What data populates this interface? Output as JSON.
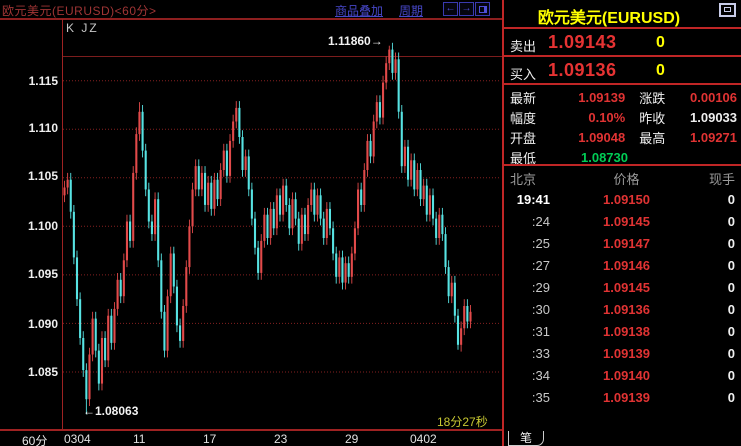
{
  "colors": {
    "red": "#e03333",
    "white": "#eeeeee",
    "green": "#00cc55",
    "yellow": "#ffff00",
    "up": "#e24a4a",
    "down": "#57e3e3",
    "axis": "#9e2222",
    "grid": "#852020",
    "panel_line": "#c02626"
  },
  "topbar": {
    "title": "欧元美元(EURUSD)<60分>",
    "overlay_link": "商品叠加",
    "period_link": "周期",
    "back_icon": "←",
    "forward_icon": "→"
  },
  "chart": {
    "toolbar_label": "K JZ",
    "y_axis_labels": [
      "1.115",
      "1.110",
      "1.105",
      "1.100",
      "1.095",
      "1.090",
      "1.085"
    ],
    "x_axis_labels": [
      "0304",
      "11",
      "17",
      "23",
      "29",
      "0402"
    ],
    "period_label": "60分",
    "high_annotation": "1.11860→",
    "low_annotation": "←1.08063",
    "countdown": "18分27秒"
  },
  "chart_data": {
    "type": "candlestick",
    "symbol": "EURUSD",
    "interval": "60min",
    "price_high_marked": 1.1186,
    "price_low_marked": 1.08063,
    "y_ticks": [
      1.115,
      1.11,
      1.105,
      1.1,
      1.095,
      1.09,
      1.085
    ],
    "x_tick_labels": [
      "0304",
      "11",
      "17",
      "23",
      "29",
      "0402"
    ],
    "first_open": 1.1032,
    "closes": [
      1.104,
      1.1048,
      1.1015,
      1.0968,
      1.0925,
      1.0885,
      1.0852,
      1.0822,
      1.0868,
      1.0905,
      1.0872,
      1.0838,
      1.0885,
      1.0862,
      1.0908,
      1.088,
      1.0915,
      1.0945,
      1.0928,
      1.0965,
      1.1005,
      1.0985,
      1.1055,
      1.1095,
      1.1118,
      1.1078,
      1.1038,
      1.1005,
      1.0992,
      1.1028,
      1.0965,
      1.0912,
      1.0872,
      1.0928,
      1.0972,
      1.0938,
      1.0898,
      1.0882,
      1.0918,
      1.0958,
      1.1,
      1.1038,
      1.1062,
      1.1038,
      1.1055,
      1.1022,
      1.1045,
      1.1018,
      1.1048,
      1.1028,
      1.1058,
      1.1078,
      1.1052,
      1.1088,
      1.1108,
      1.1122,
      1.1092,
      1.1058,
      1.1072,
      1.1038,
      1.1008,
      1.0978,
      1.0952,
      1.0985,
      1.1012,
      1.0988,
      1.1018,
      1.0998,
      1.1032,
      1.1012,
      1.1042,
      1.1022,
      1.0998,
      1.1028,
      1.1008,
      1.0982,
      1.1012,
      1.0992,
      1.1022,
      1.1038,
      1.1012,
      1.1032,
      1.1008,
      1.0988,
      1.1018,
      1.0998,
      1.0972,
      1.0948,
      1.0968,
      1.0942,
      1.0962,
      1.0948,
      1.0972,
      1.0998,
      1.1038,
      1.1022,
      1.1058,
      1.1088,
      1.1072,
      1.1108,
      1.1128,
      1.1112,
      1.1148,
      1.1168,
      1.1182,
      1.1158,
      1.1172,
      1.1118,
      1.1062,
      1.1082,
      1.1048,
      1.1068,
      1.1038,
      1.1058,
      1.1028,
      1.1042,
      1.1012,
      1.1032,
      1.1008,
      1.0988,
      1.1012,
      1.0992,
      1.0958,
      1.0928,
      1.0942,
      1.0908,
      1.0878,
      1.0895,
      1.0918,
      1.0902,
      1.0912
    ],
    "wick_overrides": {
      "7": {
        "low": 1.08063
      },
      "24": {
        "high": 1.1128
      },
      "104": {
        "high": 1.1186
      },
      "126": {
        "low": 1.0873
      }
    }
  },
  "panel": {
    "title": "欧元美元(EURUSD)",
    "sell": {
      "label": "卖出",
      "price": "1.09143",
      "vol": "0"
    },
    "buy": {
      "label": "买入",
      "price": "1.09136",
      "vol": "0"
    },
    "stats_rows": [
      [
        {
          "label": "最新",
          "value": "1.09139",
          "tone": "red"
        },
        {
          "label": "涨跌",
          "value": "0.00106",
          "tone": "red"
        }
      ],
      [
        {
          "label": "幅度",
          "value": "0.10%",
          "tone": "red"
        },
        {
          "label": "昨收",
          "value": "1.09033",
          "tone": "white"
        }
      ],
      [
        {
          "label": "开盘",
          "value": "1.09048",
          "tone": "red"
        },
        {
          "label": "最高",
          "value": "1.09271",
          "tone": "red"
        }
      ],
      [
        {
          "label": "最低",
          "value": "1.08730",
          "tone": "green"
        }
      ]
    ],
    "table": {
      "headers": [
        "北京",
        "价格",
        "现手"
      ],
      "rows": [
        [
          "19:41",
          "1.09150",
          "0"
        ],
        [
          ":24",
          "1.09145",
          "0"
        ],
        [
          ":25",
          "1.09147",
          "0"
        ],
        [
          ":27",
          "1.09146",
          "0"
        ],
        [
          ":29",
          "1.09145",
          "0"
        ],
        [
          ":30",
          "1.09136",
          "0"
        ],
        [
          ":31",
          "1.09138",
          "0"
        ],
        [
          ":33",
          "1.09139",
          "0"
        ],
        [
          ":34",
          "1.09140",
          "0"
        ],
        [
          ":35",
          "1.09139",
          "0"
        ]
      ]
    },
    "bottom_tab": "笔"
  }
}
